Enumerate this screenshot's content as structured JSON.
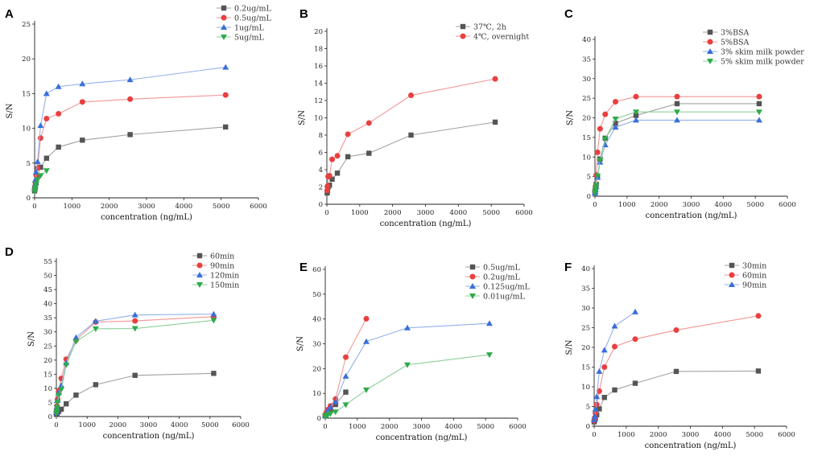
{
  "chart_data": [
    {
      "panel": "A",
      "type": "line",
      "xlabel": "concentration (ng/mL)",
      "ylabel": "S/N",
      "xlim": [
        0,
        6000
      ],
      "ylim": [
        0,
        25
      ],
      "xticks": [
        0,
        1000,
        2000,
        3000,
        4000,
        5000,
        6000
      ],
      "yticks": [
        0,
        5,
        10,
        15,
        20,
        25
      ],
      "legend_position": "top-right",
      "series": [
        {
          "name": "0.2ug/mL",
          "color": "#555555",
          "marker": "square",
          "x": [
            0,
            10,
            20,
            40,
            80,
            160,
            320,
            640,
            1280,
            2560,
            5120
          ],
          "y": [
            1.0,
            1.3,
            1.6,
            2.2,
            3.1,
            4.4,
            5.7,
            7.3,
            8.3,
            9.1,
            10.2
          ]
        },
        {
          "name": "0.5ug/mL",
          "color": "#e8403f",
          "marker": "circle",
          "x": [
            0,
            10,
            20,
            40,
            80,
            160,
            320,
            640,
            1280,
            2560,
            5120
          ],
          "y": [
            1.2,
            1.6,
            2.2,
            3.3,
            4.3,
            8.6,
            11.4,
            12.1,
            13.8,
            14.2,
            14.8
          ]
        },
        {
          "name": "1ug/mL",
          "color": "#3a6fd8",
          "marker": "triangle-up",
          "x": [
            0,
            10,
            20,
            40,
            80,
            160,
            320,
            640,
            1280,
            2560,
            5120
          ],
          "y": [
            1.3,
            1.8,
            2.6,
            3.7,
            5.2,
            10.4,
            15.0,
            16.0,
            16.4,
            17.0,
            18.8
          ]
        },
        {
          "name": "5ug/mL",
          "color": "#2eaa4a",
          "marker": "triangle-down",
          "x": [
            0,
            10,
            20,
            40,
            80,
            160,
            320
          ],
          "y": [
            0.9,
            1.2,
            1.5,
            2.0,
            2.6,
            3.2,
            3.9
          ]
        }
      ]
    },
    {
      "panel": "B",
      "type": "line",
      "xlabel": "concentration (ng/mL)",
      "ylabel": "S/N",
      "xlim": [
        0,
        6000
      ],
      "ylim": [
        0,
        20
      ],
      "xticks": [
        0,
        1000,
        2000,
        3000,
        4000,
        5000,
        6000
      ],
      "yticks": [
        0,
        2,
        4,
        6,
        8,
        10,
        12,
        14,
        16,
        18,
        20
      ],
      "legend_position": "top-right",
      "series": [
        {
          "name": "37℃, 2h",
          "color": "#555555",
          "marker": "square",
          "x": [
            10,
            20,
            40,
            80,
            160,
            320,
            640,
            1280,
            2560,
            5120
          ],
          "y": [
            1.3,
            1.6,
            2.0,
            2.2,
            2.9,
            3.6,
            5.5,
            5.9,
            8.0,
            9.5
          ]
        },
        {
          "name": "4℃, overnight",
          "color": "#e8403f",
          "marker": "circle",
          "x": [
            10,
            20,
            40,
            80,
            160,
            320,
            640,
            1280,
            2560,
            5120
          ],
          "y": [
            1.6,
            2.1,
            3.2,
            3.3,
            5.2,
            5.6,
            8.1,
            9.4,
            12.6,
            14.5
          ]
        }
      ]
    },
    {
      "panel": "C",
      "type": "line",
      "xlabel": "concentration (ng/mL)",
      "ylabel": "S/N",
      "xlim": [
        0,
        6000
      ],
      "ylim": [
        0,
        40
      ],
      "xticks": [
        0,
        1000,
        2000,
        3000,
        4000,
        5000,
        6000
      ],
      "yticks": [
        0,
        5,
        10,
        15,
        20,
        25,
        30,
        35,
        40
      ],
      "legend_position": "top-right",
      "series": [
        {
          "name": "3%BSA",
          "color": "#555555",
          "marker": "square",
          "x": [
            0,
            10,
            20,
            40,
            80,
            160,
            320,
            640,
            1280,
            2560,
            5120
          ],
          "y": [
            1.0,
            1.5,
            2.1,
            3.0,
            4.9,
            9.5,
            14.8,
            18.6,
            20.6,
            23.6,
            23.6
          ]
        },
        {
          "name": "5%BSA",
          "color": "#e8403f",
          "marker": "circle",
          "x": [
            0,
            10,
            20,
            40,
            80,
            160,
            320,
            640,
            1280,
            2560,
            5120
          ],
          "y": [
            1.2,
            1.7,
            2.6,
            5.4,
            11.2,
            17.2,
            20.9,
            24.1,
            25.4,
            25.4,
            25.4
          ]
        },
        {
          "name": "3% skim milk powder",
          "color": "#3a6fd8",
          "marker": "triangle-up",
          "x": [
            0,
            10,
            20,
            40,
            80,
            160,
            320,
            640,
            1280,
            2560,
            5120
          ],
          "y": [
            0.8,
            1.2,
            1.7,
            2.5,
            4.8,
            8.7,
            13.1,
            17.6,
            19.4,
            19.4,
            19.4
          ]
        },
        {
          "name": "5% skim milk powder",
          "color": "#2eaa4a",
          "marker": "triangle-down",
          "x": [
            0,
            10,
            20,
            40,
            80,
            160,
            320,
            640,
            1280,
            2560,
            5120
          ],
          "y": [
            0.9,
            1.3,
            1.9,
            2.7,
            5.2,
            9.2,
            14.6,
            19.7,
            21.5,
            21.5,
            21.5
          ]
        }
      ]
    },
    {
      "panel": "D",
      "type": "line",
      "xlabel": "concentration (ng/mL)",
      "ylabel": "S/N",
      "xlim": [
        0,
        6000
      ],
      "ylim": [
        0,
        55
      ],
      "xticks": [
        0,
        1000,
        2000,
        3000,
        4000,
        5000,
        6000
      ],
      "yticks": [
        0,
        5,
        10,
        15,
        20,
        25,
        30,
        35,
        40,
        45,
        50,
        55
      ],
      "legend_position": "top-right",
      "series": [
        {
          "name": "60min",
          "color": "#555555",
          "marker": "square",
          "x": [
            0,
            10,
            20,
            40,
            80,
            160,
            320,
            640,
            1280,
            2560,
            5120
          ],
          "y": [
            0.8,
            1.0,
            1.2,
            1.5,
            1.9,
            2.6,
            4.5,
            7.6,
            11.3,
            14.6,
            15.3
          ]
        },
        {
          "name": "90min",
          "color": "#e8403f",
          "marker": "circle",
          "x": [
            0,
            10,
            20,
            40,
            80,
            160,
            320,
            640,
            1280,
            2560,
            5120
          ],
          "y": [
            1.5,
            2.4,
            3.8,
            6.1,
            9.2,
            13.5,
            20.3,
            27.1,
            33.5,
            33.9,
            35.4
          ]
        },
        {
          "name": "120min",
          "color": "#3a6fd8",
          "marker": "triangle-up",
          "x": [
            0,
            10,
            20,
            40,
            80,
            160,
            320,
            640,
            1280,
            2560,
            5120
          ],
          "y": [
            1.4,
            2.2,
            3.5,
            5.7,
            8.4,
            11.0,
            19.0,
            28.0,
            33.8,
            36.0,
            36.3
          ]
        },
        {
          "name": "150min",
          "color": "#2eaa4a",
          "marker": "triangle-down",
          "x": [
            0,
            10,
            20,
            40,
            80,
            160,
            320,
            640,
            1280,
            2560,
            5120
          ],
          "y": [
            1.2,
            1.9,
            3.1,
            5.0,
            7.6,
            9.6,
            18.3,
            26.6,
            31.1,
            31.2,
            34.1
          ]
        }
      ]
    },
    {
      "panel": "E",
      "type": "line",
      "xlabel": "concentration (ng/mL)",
      "ylabel": "S/N",
      "xlim": [
        0,
        6000
      ],
      "ylim": [
        0,
        60
      ],
      "xticks": [
        0,
        1000,
        2000,
        3000,
        4000,
        5000,
        6000
      ],
      "yticks": [
        0,
        10,
        20,
        30,
        40,
        50,
        60
      ],
      "legend_position": "top-right",
      "series": [
        {
          "name": "0.5ug/mL",
          "color": "#555555",
          "marker": "square",
          "x": [
            0,
            20,
            40,
            80,
            160,
            320,
            640
          ],
          "y": [
            1.0,
            1.4,
            2.0,
            2.6,
            3.4,
            5.5,
            10.5
          ]
        },
        {
          "name": "0.2ug/mL",
          "color": "#e8403f",
          "marker": "circle",
          "x": [
            0,
            20,
            40,
            80,
            160,
            320,
            640,
            1280
          ],
          "y": [
            1.2,
            1.7,
            2.4,
            3.4,
            4.9,
            7.7,
            24.6,
            40.1
          ]
        },
        {
          "name": "0.125ug/mL",
          "color": "#3a6fd8",
          "marker": "triangle-up",
          "x": [
            0,
            20,
            40,
            80,
            160,
            320,
            640,
            1280,
            2560,
            5120
          ],
          "y": [
            1.1,
            1.5,
            2.2,
            3.0,
            4.4,
            6.6,
            16.9,
            30.9,
            36.4,
            38.2
          ]
        },
        {
          "name": "0.01ug/mL",
          "color": "#2eaa4a",
          "marker": "triangle-down",
          "x": [
            0,
            20,
            40,
            80,
            160,
            320,
            640,
            1280,
            2560,
            5120
          ],
          "y": [
            0.7,
            0.9,
            1.1,
            1.4,
            1.8,
            2.5,
            5.4,
            11.4,
            21.5,
            25.6
          ]
        }
      ]
    },
    {
      "panel": "F",
      "type": "line",
      "xlabel": "concentration (ng/mL)",
      "ylabel": "S/N",
      "xlim": [
        0,
        6000
      ],
      "ylim": [
        0,
        40
      ],
      "xticks": [
        0,
        1000,
        2000,
        3000,
        4000,
        5000,
        6000
      ],
      "yticks": [
        0,
        5,
        10,
        15,
        20,
        25,
        30,
        35,
        40
      ],
      "legend_position": "top-right",
      "series": [
        {
          "name": "30min",
          "color": "#555555",
          "marker": "square",
          "x": [
            0,
            20,
            40,
            80,
            160,
            320,
            640,
            1280,
            2560,
            5120
          ],
          "y": [
            1.1,
            1.5,
            2.0,
            2.9,
            4.4,
            7.3,
            9.2,
            10.9,
            13.9,
            14.0
          ]
        },
        {
          "name": "60min",
          "color": "#e8403f",
          "marker": "circle",
          "x": [
            0,
            20,
            40,
            80,
            160,
            320,
            640,
            1280,
            2560,
            5120
          ],
          "y": [
            1.4,
            2.2,
            3.3,
            5.5,
            8.9,
            15.0,
            20.2,
            22.1,
            24.4,
            28.0
          ]
        },
        {
          "name": "90min",
          "color": "#3a6fd8",
          "marker": "triangle-up",
          "x": [
            0,
            20,
            40,
            80,
            160,
            320,
            640,
            1280
          ],
          "y": [
            1.6,
            2.5,
            4.3,
            7.5,
            13.9,
            19.3,
            25.4,
            29.0
          ]
        }
      ]
    }
  ]
}
